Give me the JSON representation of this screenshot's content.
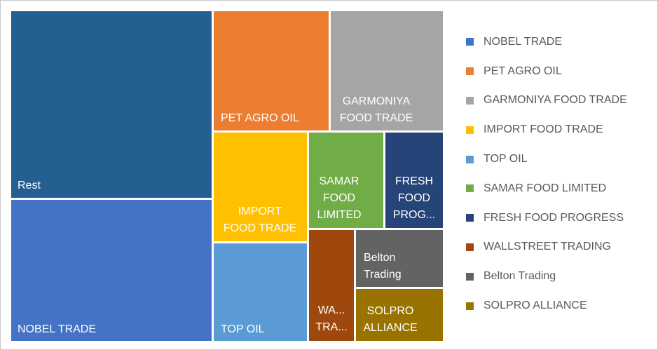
{
  "chart_data": {
    "type": "treemap",
    "title": "",
    "items": [
      {
        "name": "Rest",
        "label_lines": [
          "Rest"
        ],
        "value": 27.0,
        "color": "#255E91"
      },
      {
        "name": "NOBEL TRADE",
        "label_lines": [
          "NOBEL TRADE"
        ],
        "value": 20.4,
        "color": "#4472C4"
      },
      {
        "name": "PET AGRO OIL",
        "label_lines": [
          "PET AGRO OIL"
        ],
        "value": 9.7,
        "color": "#ED7D31"
      },
      {
        "name": "GARMONIYA FOOD TRADE",
        "label_lines": [
          "GARMONIYA",
          "FOOD TRADE"
        ],
        "value": 9.4,
        "color": "#A5A5A5"
      },
      {
        "name": "IMPORT FOOD TRADE",
        "label_lines": [
          "IMPORT",
          "FOOD TRADE"
        ],
        "value": 8.1,
        "color": "#FFC000"
      },
      {
        "name": "TOP OIL",
        "label_lines": [
          "TOP OIL"
        ],
        "value": 7.2,
        "color": "#5B9BD5"
      },
      {
        "name": "SAMAR FOOD LIMITED",
        "label_lines": [
          "SAMAR",
          "FOOD",
          "LIMITED"
        ],
        "value": 5.1,
        "color": "#70AD47"
      },
      {
        "name": "FRESH FOOD PROGRESS",
        "label_lines": [
          "FRESH",
          "FOOD",
          "PROG..."
        ],
        "value": 4.4,
        "color": "#264478"
      },
      {
        "name": "WALLSTREET TRADING",
        "label_lines": [
          "WA...",
          "TRA..."
        ],
        "value": 3.9,
        "color": "#9E480E"
      },
      {
        "name": "Belton Trading",
        "label_lines": [
          "Belton",
          "Trading"
        ],
        "value": 2.8,
        "color": "#636363"
      },
      {
        "name": "SOLPRO ALLIANCE",
        "label_lines": [
          "SOLPRO",
          "ALLIANCE"
        ],
        "value": 2.8,
        "color": "#997300"
      }
    ],
    "legend": {
      "position": "right",
      "entries": [
        {
          "label": "NOBEL TRADE",
          "color": "#4472C4"
        },
        {
          "label": "PET AGRO OIL",
          "color": "#ED7D31"
        },
        {
          "label": "GARMONIYA FOOD TRADE",
          "color": "#A5A5A5"
        },
        {
          "label": "IMPORT FOOD TRADE",
          "color": "#FFC000"
        },
        {
          "label": "TOP OIL",
          "color": "#5B9BD5"
        },
        {
          "label": "SAMAR FOOD LIMITED",
          "color": "#70AD47"
        },
        {
          "label": "FRESH FOOD PROGRESS",
          "color": "#264478"
        },
        {
          "label": "WALLSTREET TRADING",
          "color": "#9E480E"
        },
        {
          "label": "Belton Trading",
          "color": "#636363"
        },
        {
          "label": "SOLPRO ALLIANCE",
          "color": "#997300"
        }
      ]
    }
  }
}
